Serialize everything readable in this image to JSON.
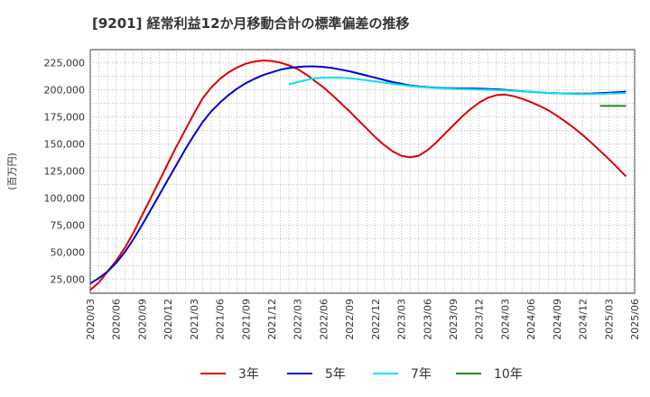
{
  "chart_data": {
    "type": "line",
    "title": "[9201]  経常利益12か月移動合計の標準偏差の推移",
    "ylabel": "(百万円)",
    "xlabel": "",
    "ylim": [
      12000,
      237000
    ],
    "y_ticks": [
      25000,
      50000,
      75000,
      100000,
      125000,
      150000,
      175000,
      200000,
      225000
    ],
    "y_tick_labels": [
      "25,000",
      "50,000",
      "75,000",
      "100,000",
      "125,000",
      "150,000",
      "175,000",
      "200,000",
      "225,000"
    ],
    "x_ticks": [
      "2020-03",
      "2020-06",
      "2020-09",
      "2020-12",
      "2021-03",
      "2021-06",
      "2021-09",
      "2021-12",
      "2022-03",
      "2022-06",
      "2022-09",
      "2022-12",
      "2023-03",
      "2023-06",
      "2023-09",
      "2023-12",
      "2024-03",
      "2024-06",
      "2024-09",
      "2024-12",
      "2025-03",
      "2025-06"
    ],
    "x_tick_labels": [
      "2020/03",
      "2020/06",
      "2020/09",
      "2020/12",
      "2021/03",
      "2021/06",
      "2021/09",
      "2021/12",
      "2022/03",
      "2022/06",
      "2022/09",
      "2022/12",
      "2023/03",
      "2023/06",
      "2023/09",
      "2023/12",
      "2024/03",
      "2024/06",
      "2024/09",
      "2024/12",
      "2025/03",
      "2025/06"
    ],
    "grid": true,
    "legend": "bottom",
    "series": [
      {
        "name": "3年",
        "color": "#dd0000",
        "points": [
          [
            "2020-03",
            15000
          ],
          [
            "2020-04",
            22000
          ],
          [
            "2020-05",
            32000
          ],
          [
            "2020-06",
            42000
          ],
          [
            "2020-07",
            54000
          ],
          [
            "2020-08",
            68000
          ],
          [
            "2020-09",
            84000
          ],
          [
            "2020-10",
            100000
          ],
          [
            "2020-11",
            116000
          ],
          [
            "2020-12",
            132000
          ],
          [
            "2021-01",
            148000
          ],
          [
            "2021-02",
            163000
          ],
          [
            "2021-03",
            178000
          ],
          [
            "2021-04",
            192000
          ],
          [
            "2021-05",
            202000
          ],
          [
            "2021-06",
            210000
          ],
          [
            "2021-07",
            216000
          ],
          [
            "2021-08",
            220500
          ],
          [
            "2021-09",
            224000
          ],
          [
            "2021-10",
            226000
          ],
          [
            "2021-11",
            227000
          ],
          [
            "2021-12",
            226500
          ],
          [
            "2022-01",
            225000
          ],
          [
            "2022-02",
            222500
          ],
          [
            "2022-03",
            219000
          ],
          [
            "2022-04",
            214000
          ],
          [
            "2022-05",
            208000
          ],
          [
            "2022-06",
            202000
          ],
          [
            "2022-07",
            195000
          ],
          [
            "2022-08",
            187500
          ],
          [
            "2022-09",
            180000
          ],
          [
            "2022-10",
            172000
          ],
          [
            "2022-11",
            164000
          ],
          [
            "2022-12",
            156000
          ],
          [
            "2023-01",
            149000
          ],
          [
            "2023-02",
            143000
          ],
          [
            "2023-03",
            139000
          ],
          [
            "2023-04",
            137500
          ],
          [
            "2023-05",
            139000
          ],
          [
            "2023-06",
            144000
          ],
          [
            "2023-07",
            151000
          ],
          [
            "2023-08",
            159000
          ],
          [
            "2023-09",
            167000
          ],
          [
            "2023-10",
            175000
          ],
          [
            "2023-11",
            182000
          ],
          [
            "2023-12",
            188000
          ],
          [
            "2024-01",
            192500
          ],
          [
            "2024-02",
            195000
          ],
          [
            "2024-03",
            195500
          ],
          [
            "2024-04",
            194000
          ],
          [
            "2024-05",
            191500
          ],
          [
            "2024-06",
            188500
          ],
          [
            "2024-07",
            185000
          ],
          [
            "2024-08",
            181000
          ],
          [
            "2024-09",
            176000
          ],
          [
            "2024-10",
            170500
          ],
          [
            "2024-11",
            164500
          ],
          [
            "2024-12",
            158000
          ],
          [
            "2025-01",
            151000
          ],
          [
            "2025-02",
            143500
          ],
          [
            "2025-03",
            136000
          ],
          [
            "2025-04",
            128000
          ],
          [
            "2025-05",
            120000
          ]
        ]
      },
      {
        "name": "5年",
        "color": "#0000cc",
        "points": [
          [
            "2020-03",
            21000
          ],
          [
            "2020-04",
            26000
          ],
          [
            "2020-05",
            32000
          ],
          [
            "2020-06",
            40000
          ],
          [
            "2020-07",
            50000
          ],
          [
            "2020-08",
            62000
          ],
          [
            "2020-09",
            75000
          ],
          [
            "2020-10",
            89000
          ],
          [
            "2020-11",
            103000
          ],
          [
            "2020-12",
            117000
          ],
          [
            "2021-01",
            131000
          ],
          [
            "2021-02",
            145000
          ],
          [
            "2021-03",
            158000
          ],
          [
            "2021-04",
            170000
          ],
          [
            "2021-05",
            180000
          ],
          [
            "2021-06",
            188000
          ],
          [
            "2021-07",
            195000
          ],
          [
            "2021-08",
            201000
          ],
          [
            "2021-09",
            206000
          ],
          [
            "2021-10",
            210000
          ],
          [
            "2021-11",
            213500
          ],
          [
            "2021-12",
            216000
          ],
          [
            "2022-01",
            218500
          ],
          [
            "2022-02",
            220000
          ],
          [
            "2022-03",
            221000
          ],
          [
            "2022-04",
            221500
          ],
          [
            "2022-05",
            221500
          ],
          [
            "2022-06",
            221000
          ],
          [
            "2022-07",
            220000
          ],
          [
            "2022-08",
            218500
          ],
          [
            "2022-09",
            217000
          ],
          [
            "2022-10",
            215000
          ],
          [
            "2022-11",
            213000
          ],
          [
            "2022-12",
            211000
          ],
          [
            "2023-01",
            209000
          ],
          [
            "2023-02",
            207000
          ],
          [
            "2023-03",
            205500
          ],
          [
            "2023-04",
            204000
          ],
          [
            "2023-05",
            203000
          ],
          [
            "2023-06",
            202300
          ],
          [
            "2023-07",
            201800
          ],
          [
            "2023-08",
            201500
          ],
          [
            "2023-09",
            201300
          ],
          [
            "2023-10",
            201200
          ],
          [
            "2023-11",
            201100
          ],
          [
            "2023-12",
            201000
          ],
          [
            "2024-01",
            200700
          ],
          [
            "2024-02",
            200300
          ],
          [
            "2024-03",
            199800
          ],
          [
            "2024-04",
            199200
          ],
          [
            "2024-05",
            198600
          ],
          [
            "2024-06",
            198000
          ],
          [
            "2024-07",
            197500
          ],
          [
            "2024-08",
            197000
          ],
          [
            "2024-09",
            196700
          ],
          [
            "2024-10",
            196500
          ],
          [
            "2024-11",
            196400
          ],
          [
            "2024-12",
            196400
          ],
          [
            "2025-01",
            196500
          ],
          [
            "2025-02",
            196800
          ],
          [
            "2025-03",
            197200
          ],
          [
            "2025-04",
            197700
          ],
          [
            "2025-05",
            198200
          ]
        ]
      },
      {
        "name": "7年",
        "color": "#00e5ee",
        "points": [
          [
            "2022-02",
            205000
          ],
          [
            "2022-03",
            207000
          ],
          [
            "2022-04",
            209000
          ],
          [
            "2022-05",
            210500
          ],
          [
            "2022-06",
            211000
          ],
          [
            "2022-07",
            211200
          ],
          [
            "2022-08",
            211000
          ],
          [
            "2022-09",
            210500
          ],
          [
            "2022-10",
            209700
          ],
          [
            "2022-11",
            208700
          ],
          [
            "2022-12",
            207600
          ],
          [
            "2023-01",
            206500
          ],
          [
            "2023-02",
            205400
          ],
          [
            "2023-03",
            204400
          ],
          [
            "2023-04",
            203500
          ],
          [
            "2023-05",
            202700
          ],
          [
            "2023-06",
            202000
          ],
          [
            "2023-07",
            201500
          ],
          [
            "2023-08",
            201100
          ],
          [
            "2023-09",
            200800
          ],
          [
            "2023-10",
            200500
          ],
          [
            "2023-11",
            200300
          ],
          [
            "2023-12",
            200100
          ],
          [
            "2024-01",
            199900
          ],
          [
            "2024-02",
            199600
          ],
          [
            "2024-03",
            199300
          ],
          [
            "2024-04",
            198900
          ],
          [
            "2024-05",
            198500
          ],
          [
            "2024-06",
            198000
          ],
          [
            "2024-07",
            197500
          ],
          [
            "2024-08",
            197000
          ],
          [
            "2024-09",
            196600
          ],
          [
            "2024-10",
            196300
          ],
          [
            "2024-11",
            196100
          ],
          [
            "2024-12",
            196000
          ],
          [
            "2025-01",
            196000
          ],
          [
            "2025-02",
            196100
          ],
          [
            "2025-03",
            196300
          ],
          [
            "2025-04",
            196600
          ],
          [
            "2025-05",
            197000
          ]
        ]
      },
      {
        "name": "10年",
        "color": "#228822",
        "points": [
          [
            "2025-02",
            185000
          ],
          [
            "2025-03",
            185000
          ],
          [
            "2025-04",
            185000
          ],
          [
            "2025-05",
            185000
          ]
        ]
      }
    ]
  }
}
